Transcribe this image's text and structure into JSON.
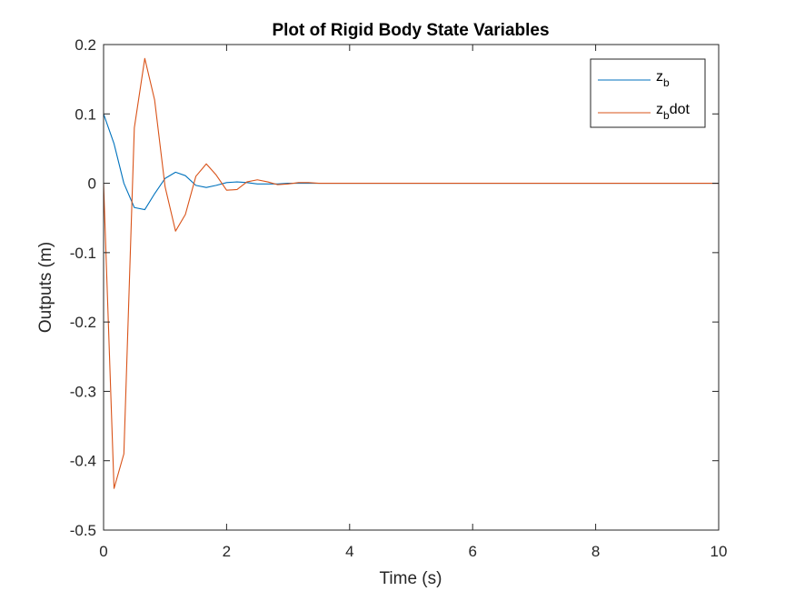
{
  "chart_data": {
    "type": "line",
    "title": "Plot of Rigid Body State Variables",
    "xlabel": "Time (s)",
    "ylabel": "Outputs (m)",
    "xlim": [
      0,
      10
    ],
    "ylim": [
      -0.5,
      0.2
    ],
    "xticks": [
      0,
      2,
      4,
      6,
      8,
      10
    ],
    "xtick_labels": [
      "0",
      "2",
      "4",
      "6",
      "8",
      "10"
    ],
    "yticks": [
      0.2,
      0.1,
      0,
      -0.1,
      -0.2,
      -0.3,
      -0.4,
      -0.5
    ],
    "ytick_labels": [
      "0.2",
      "0.1",
      "0",
      "-0.1",
      "-0.2",
      "-0.3",
      "-0.4",
      "-0.5"
    ],
    "grid": false,
    "legend_position": "top-right",
    "series": [
      {
        "name": "z_b",
        "legend_main": "z",
        "legend_sub": "b",
        "legend_suffix": "",
        "color": "#0072BD",
        "x": [
          0,
          0.17,
          0.33,
          0.5,
          0.67,
          0.83,
          1.0,
          1.17,
          1.33,
          1.5,
          1.67,
          1.83,
          2.0,
          2.17,
          2.33,
          2.5,
          2.67,
          2.83,
          3.0,
          3.17,
          3.33,
          3.5,
          3.67,
          3.83,
          4.0,
          4.5,
          5.0,
          6.0,
          7.0,
          8.0,
          9.0,
          10.0
        ],
        "y": [
          0.1,
          0.057,
          0.0,
          -0.035,
          -0.038,
          -0.015,
          0.007,
          0.016,
          0.011,
          -0.003,
          -0.006,
          -0.003,
          0.001,
          0.002,
          0.001,
          -0.001,
          -0.001,
          -0.001,
          0.0,
          0.0,
          0.0,
          0.0,
          0.0,
          0.0,
          0.0,
          0.0,
          0.0,
          0.0,
          0.0,
          0.0,
          0.0,
          0.0
        ]
      },
      {
        "name": "z_bdot",
        "legend_main": "z",
        "legend_sub": "b",
        "legend_suffix": "dot",
        "color": "#D95319",
        "x": [
          0,
          0.17,
          0.33,
          0.5,
          0.67,
          0.83,
          1.0,
          1.17,
          1.33,
          1.5,
          1.67,
          1.83,
          2.0,
          2.17,
          2.33,
          2.5,
          2.67,
          2.83,
          3.0,
          3.17,
          3.33,
          3.5,
          3.67,
          3.83,
          4.0,
          4.5,
          5.0,
          6.0,
          7.0,
          8.0,
          9.0,
          10.0
        ],
        "y": [
          0.0,
          -0.44,
          -0.39,
          0.08,
          0.18,
          0.12,
          -0.005,
          -0.069,
          -0.045,
          0.01,
          0.028,
          0.012,
          -0.01,
          -0.009,
          0.002,
          0.005,
          0.002,
          -0.002,
          -0.001,
          0.001,
          0.001,
          0.0,
          0.0,
          0.0,
          0.0,
          0.0,
          0.0,
          0.0,
          0.0,
          0.0,
          0.0,
          0.0
        ]
      }
    ]
  }
}
